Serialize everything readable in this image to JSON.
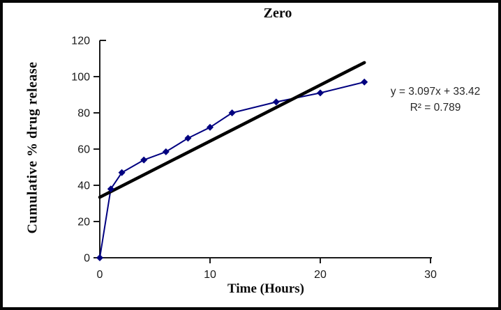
{
  "chart_data": {
    "type": "scatter",
    "title": "Zero",
    "xlabel": "Time (Hours)",
    "ylabel": "Cumulative % drug release",
    "xlim": [
      0,
      30
    ],
    "ylim": [
      0,
      120
    ],
    "x_ticks": [
      0,
      10,
      20,
      30
    ],
    "y_ticks": [
      0,
      20,
      40,
      60,
      80,
      100,
      120
    ],
    "grid": false,
    "legend": "none",
    "axis_color": "#1a1a1a",
    "series": [
      {
        "name": "Cumulative % drug release",
        "marker": "diamond",
        "color": "#000080",
        "x": [
          0,
          1,
          2,
          4,
          6,
          8,
          10,
          12,
          16,
          20,
          24
        ],
        "y": [
          0,
          38,
          47,
          54,
          58.5,
          66,
          72,
          80,
          86,
          91,
          97
        ]
      }
    ],
    "trendline": {
      "type": "linear",
      "slope": 3.097,
      "intercept": 33.42,
      "r_squared": 0.789,
      "x_range": [
        0,
        24
      ],
      "color": "#000000",
      "equation_text": "y = 3.097x + 33.42",
      "r2_text": "R² = 0.789"
    }
  }
}
